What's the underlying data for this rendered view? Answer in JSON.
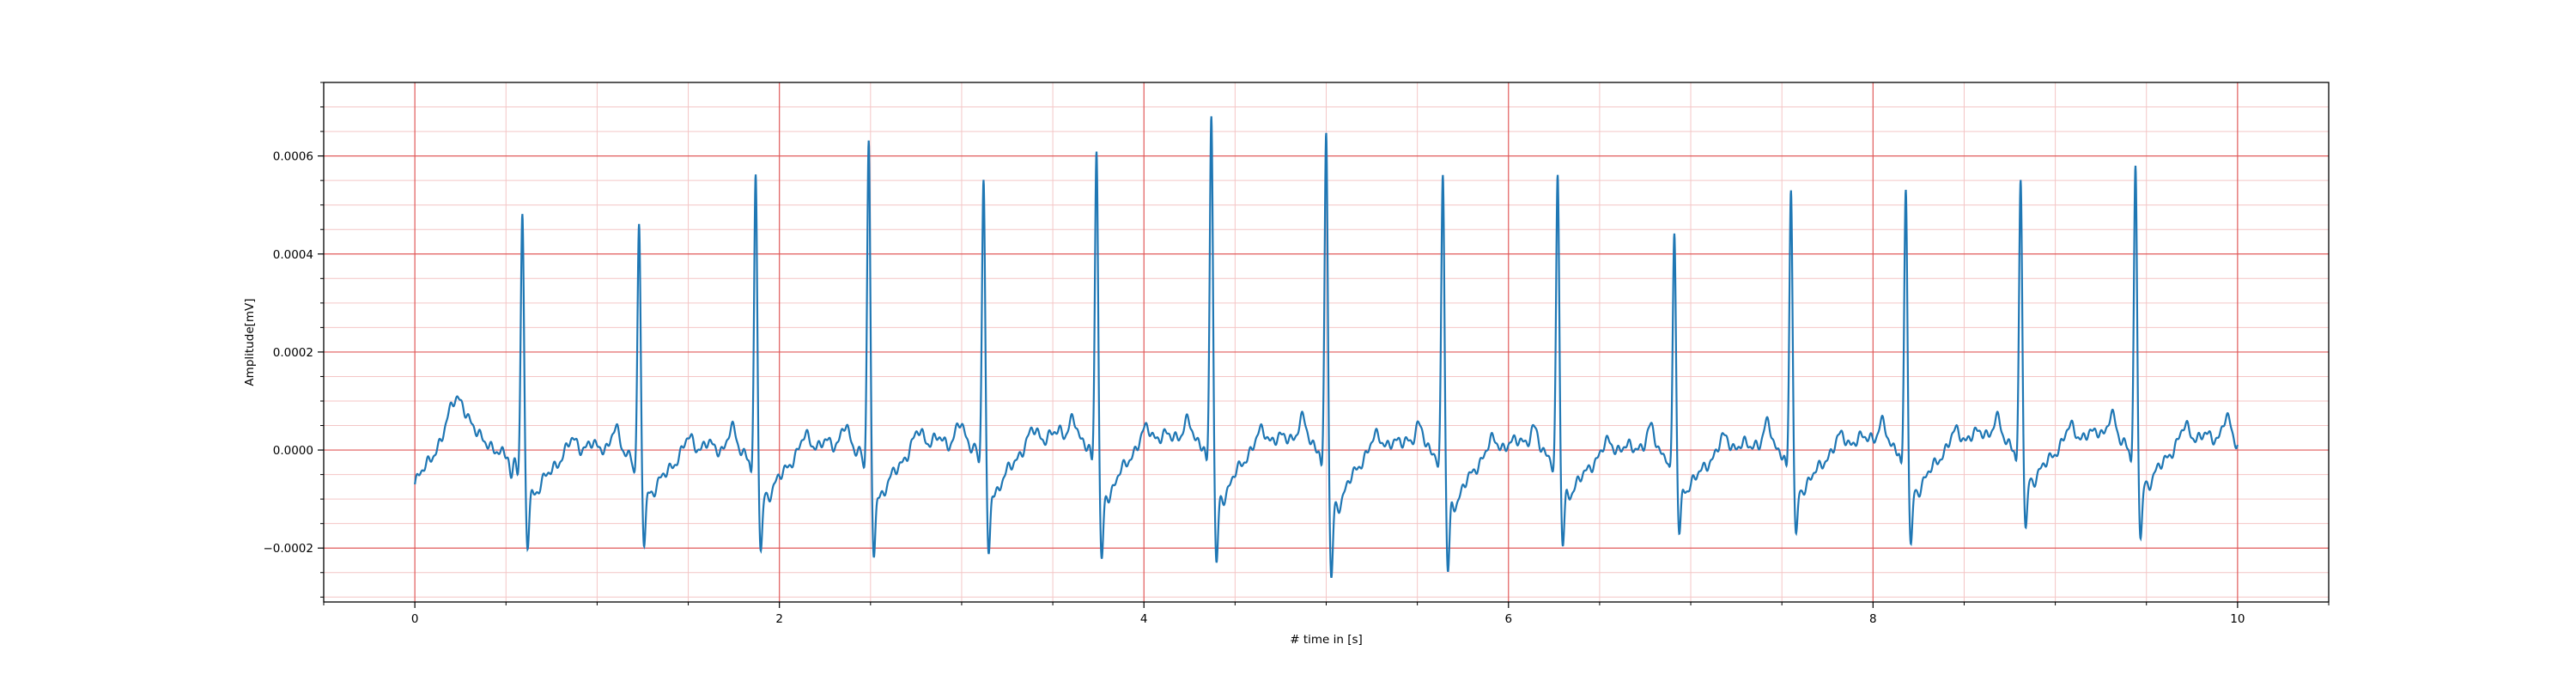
{
  "chart_data": {
    "type": "line",
    "title": "",
    "xlabel": "# time in [s]",
    "ylabel": "Amplitude[mV]",
    "xlim": [
      -0.5,
      10.5
    ],
    "ylim": [
      -0.00031,
      0.00075
    ],
    "x_ticks": [
      0,
      2,
      4,
      6,
      8,
      10
    ],
    "x_tick_labels": [
      "0",
      "2",
      "4",
      "6",
      "8",
      "10"
    ],
    "y_ticks": [
      -0.0002,
      0.0,
      0.0002,
      0.0004,
      0.0006
    ],
    "y_tick_labels": [
      "−0.0002",
      "0.0000",
      "0.0002",
      "0.0004",
      "0.0006"
    ],
    "grid": {
      "major": true,
      "minor": true,
      "major_color": "#e05a5a",
      "minor_color": "#f4c6c6"
    },
    "line_color": "#1f77b4",
    "series": [
      {
        "beats": [
          {
            "t": 0.59,
            "peak": 0.00051,
            "s_min": -0.00018
          },
          {
            "t": 1.23,
            "peak": 0.000488,
            "s_min": -0.00017
          },
          {
            "t": 1.87,
            "peak": 0.000585,
            "s_min": -0.00019
          },
          {
            "t": 2.49,
            "peak": 0.000658,
            "s_min": -0.000205
          },
          {
            "t": 3.12,
            "peak": 0.000575,
            "s_min": -0.00021
          },
          {
            "t": 3.74,
            "peak": 0.000635,
            "s_min": -0.000235
          },
          {
            "t": 4.37,
            "peak": 0.000705,
            "s_min": -0.00024
          },
          {
            "t": 5.0,
            "peak": 0.000675,
            "s_min": -0.00026
          },
          {
            "t": 5.64,
            "peak": 0.000603,
            "s_min": -0.000235
          },
          {
            "t": 6.27,
            "peak": 0.000598,
            "s_min": -0.000175
          },
          {
            "t": 6.91,
            "peak": 0.000473,
            "s_min": -0.000155
          },
          {
            "t": 7.55,
            "peak": 0.000557,
            "s_min": -0.00017
          },
          {
            "t": 8.18,
            "peak": 0.000548,
            "s_min": -0.000195
          },
          {
            "t": 8.81,
            "peak": 0.000553,
            "s_min": -0.000165
          },
          {
            "t": 9.44,
            "peak": 0.00058,
            "s_min": -0.000185
          }
        ],
        "start": {
          "t": 0.0,
          "value": -7e-05
        },
        "end": {
          "t": 10.0,
          "value": 5e-06
        }
      }
    ]
  }
}
